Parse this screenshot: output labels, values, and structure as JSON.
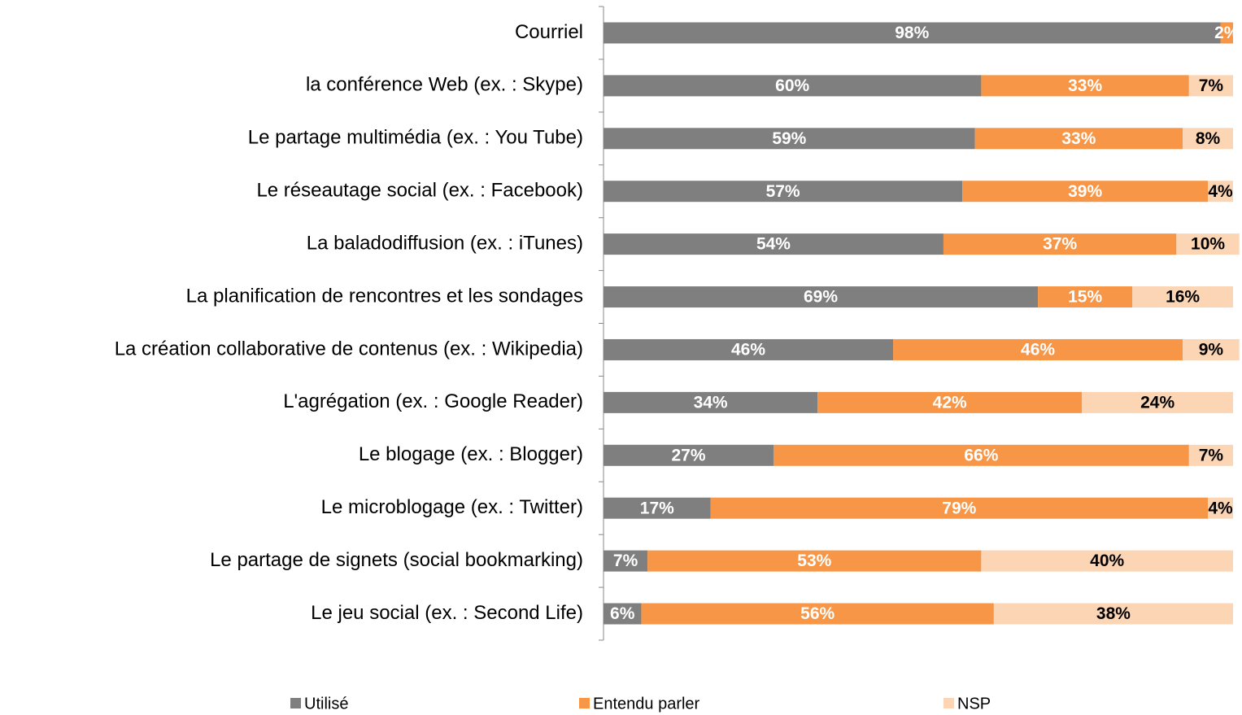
{
  "chart_data": {
    "type": "stacked_bar_horizontal",
    "categories": [
      "Courriel",
      "la conférence Web (ex. : Skype)",
      "Le partage multimédia (ex. : You Tube)",
      "Le réseautage social (ex. : Facebook)",
      "La baladodiffusion (ex. : iTunes)",
      "La planification de rencontres et les sondages",
      "La création collaborative de contenus (ex. : Wikipedia)",
      "L'agrégation (ex. : Google Reader)",
      "Le blogage (ex. : Blogger)",
      "Le microblogage (ex. : Twitter)",
      "Le partage de signets (social bookmarking)",
      "Le jeu social (ex. : Second Life)"
    ],
    "series": [
      {
        "name": "Utilisé",
        "color": "#7f7f7f",
        "values": [
          98,
          60,
          59,
          57,
          54,
          69,
          46,
          34,
          27,
          17,
          7,
          6
        ],
        "value_labels": [
          "98%",
          "60%",
          "59%",
          "57%",
          "54%",
          "69%",
          "46%",
          "34%",
          "27%",
          "17%",
          "7%",
          "6%"
        ]
      },
      {
        "name": "Entendu parler",
        "color": "#f79646",
        "values": [
          2,
          33,
          33,
          39,
          37,
          15,
          46,
          42,
          66,
          79,
          53,
          56
        ],
        "value_labels": [
          "2%",
          "33%",
          "33%",
          "39%",
          "37%",
          "15%",
          "46%",
          "42%",
          "66%",
          "79%",
          "53%",
          "56%"
        ]
      },
      {
        "name": "NSP",
        "color": "#fcd5b5",
        "values": [
          null,
          7,
          8,
          4,
          10,
          16,
          9,
          24,
          7,
          4,
          40,
          38
        ],
        "value_labels": [
          null,
          "7%",
          "8%",
          "4%",
          "10%",
          "16%",
          "9%",
          "24%",
          "7%",
          "4%",
          "40%",
          "38%"
        ]
      }
    ],
    "xlim": [
      0,
      100
    ],
    "legend": "bottom"
  }
}
